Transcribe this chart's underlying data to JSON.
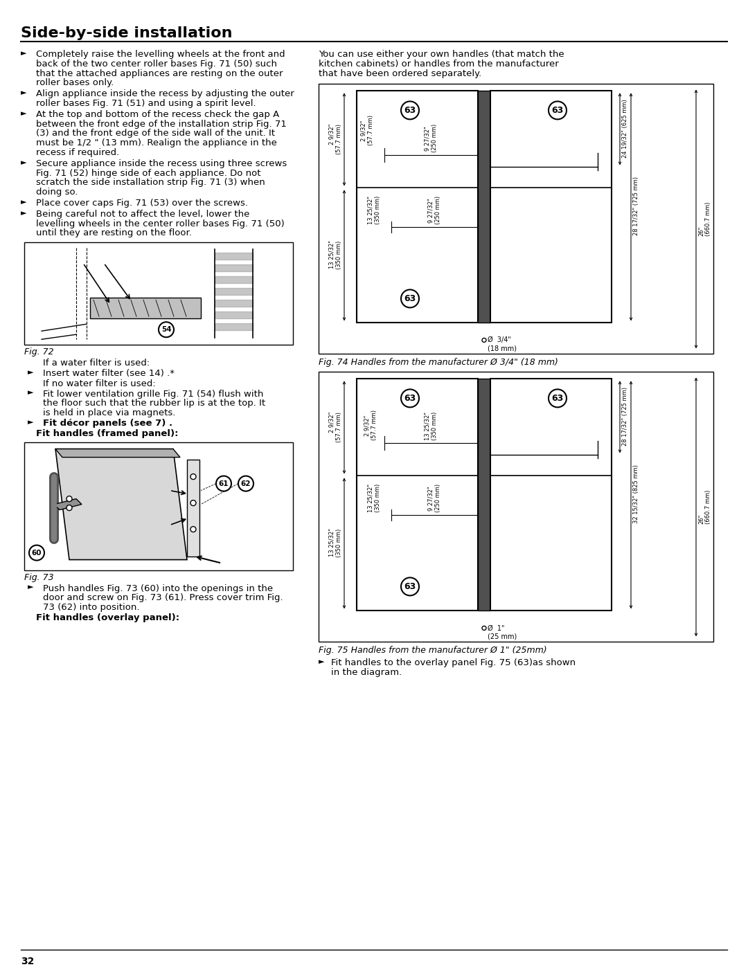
{
  "page_number": "32",
  "title": "Side-by-side installation",
  "background_color": "#ffffff",
  "text_color": "#000000",
  "bullet_char": "►",
  "left_bullets": [
    "Completely raise the levelling wheels at the front and back of the two center roller bases Fig. 71 (50) such that the attached appliances are resting on the outer roller bases only.",
    "Align appliance inside the recess by adjusting the outer roller bases Fig. 71 (51) and using a spirit level.",
    "At the top and bottom of the recess check the gap A between the front edge of the installation strip Fig. 71 (3) and the front edge of the side wall of the unit. It must be 1/2 \" (13 mm). Realign the appliance in the recess if required.",
    "Secure appliance inside the recess using three screws Fig. 71 (52) hinge side of each appliance. Do not scratch the side installation strip Fig. 71 (3) when doing so.",
    "Place cover caps Fig. 71 (53) over the screws.",
    "Being careful not to affect the level, lower the levelling wheels in the center roller bases Fig. 71 (50) until they are resting on the floor."
  ],
  "fig72_label": "Fig. 72",
  "fig72_notes_raw": [
    {
      "text": "If a water filter is used:",
      "bullet": false,
      "bold": false,
      "indent": 1
    },
    {
      "text": "Insert water filter  (see 14) .*",
      "bullet": true,
      "bold": false,
      "indent": 1
    },
    {
      "text": "If no water filter is used:",
      "bullet": false,
      "bold": false,
      "indent": 1
    },
    {
      "text": "Fit lower ventilation grille Fig. 71 (54) flush with the floor such that the rubber lip is at the top. It is held in place via magnets.",
      "bullet": true,
      "bold": false,
      "indent": 1
    },
    {
      "text": "Fit décor panels (see 7) .",
      "bullet": true,
      "bold": true,
      "indent": 1
    },
    {
      "text": "Fit handles (framed panel):",
      "bullet": false,
      "bold": true,
      "indent": 0
    }
  ],
  "fig73_label": "Fig. 73",
  "fig73_notes_raw": [
    {
      "text": "Push handles Fig. 73 (60) into the openings in the door and screw on Fig. 73 (61). Press cover trim Fig. 73 (62) into position.",
      "bullet": true,
      "bold": false,
      "indent": 1
    },
    {
      "text": "Fit handles (overlay panel):",
      "bullet": false,
      "bold": true,
      "indent": 0
    }
  ],
  "right_top_text": "You can use either your own handles (that match the kitchen cabinets) or handles from the manufacturer that have been ordered separately.",
  "fig74_label": "Fig. 74 Handles from the manufacturer Ø 3/4\" (18 mm)",
  "fig75_label": "Fig. 75 Handles from the manufacturer Ø 1\" (25mm)",
  "fig75_note": "Fit handles to the overlay panel Fig. 75 (63)as shown in the diagram."
}
